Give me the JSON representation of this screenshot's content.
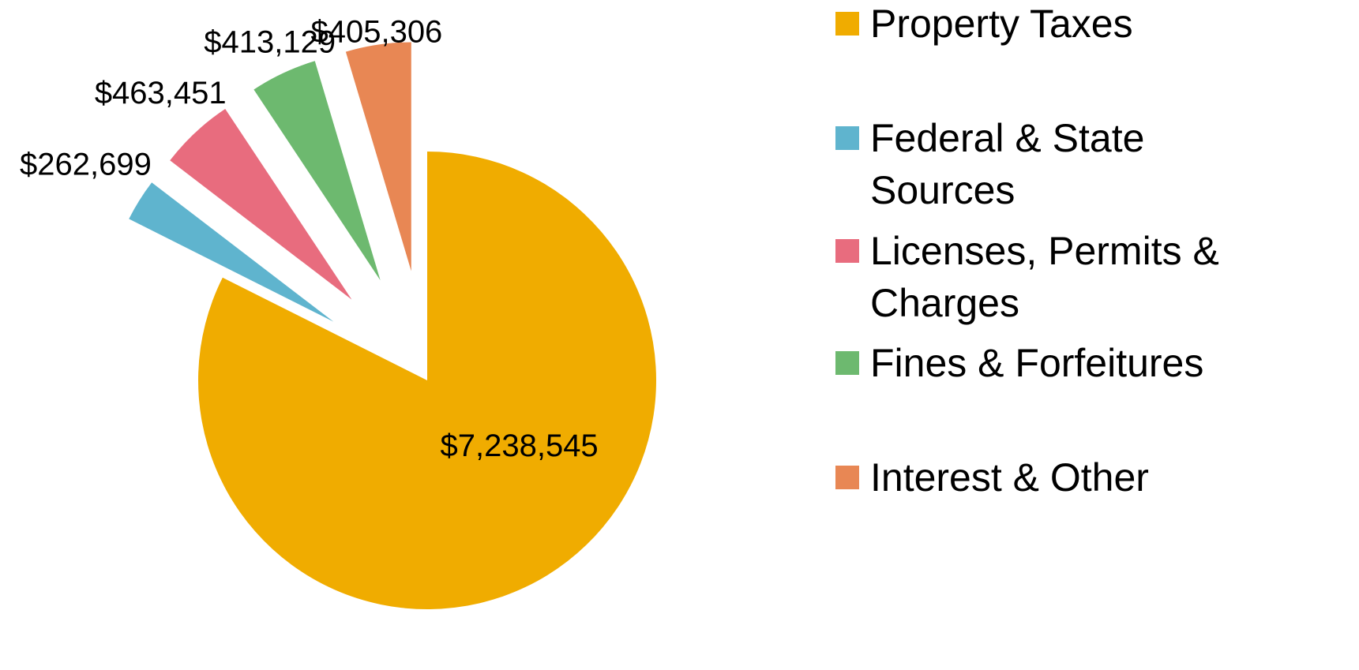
{
  "chart_data": {
    "type": "pie",
    "categories": [
      "Property Taxes",
      "Federal & State Sources",
      "Licenses, Permits & Charges",
      "Fines & Forfeitures",
      "Interest & Other"
    ],
    "values": [
      7238545,
      262699,
      463451,
      413129,
      405306
    ],
    "value_labels": [
      "$7,238,545",
      "$262,699",
      "$463,451",
      "$413,129",
      "$405,306"
    ],
    "colors": [
      "#F0AC00",
      "#5FB4CE",
      "#E86C7E",
      "#6DB96F",
      "#E88754"
    ],
    "legend": "right"
  }
}
